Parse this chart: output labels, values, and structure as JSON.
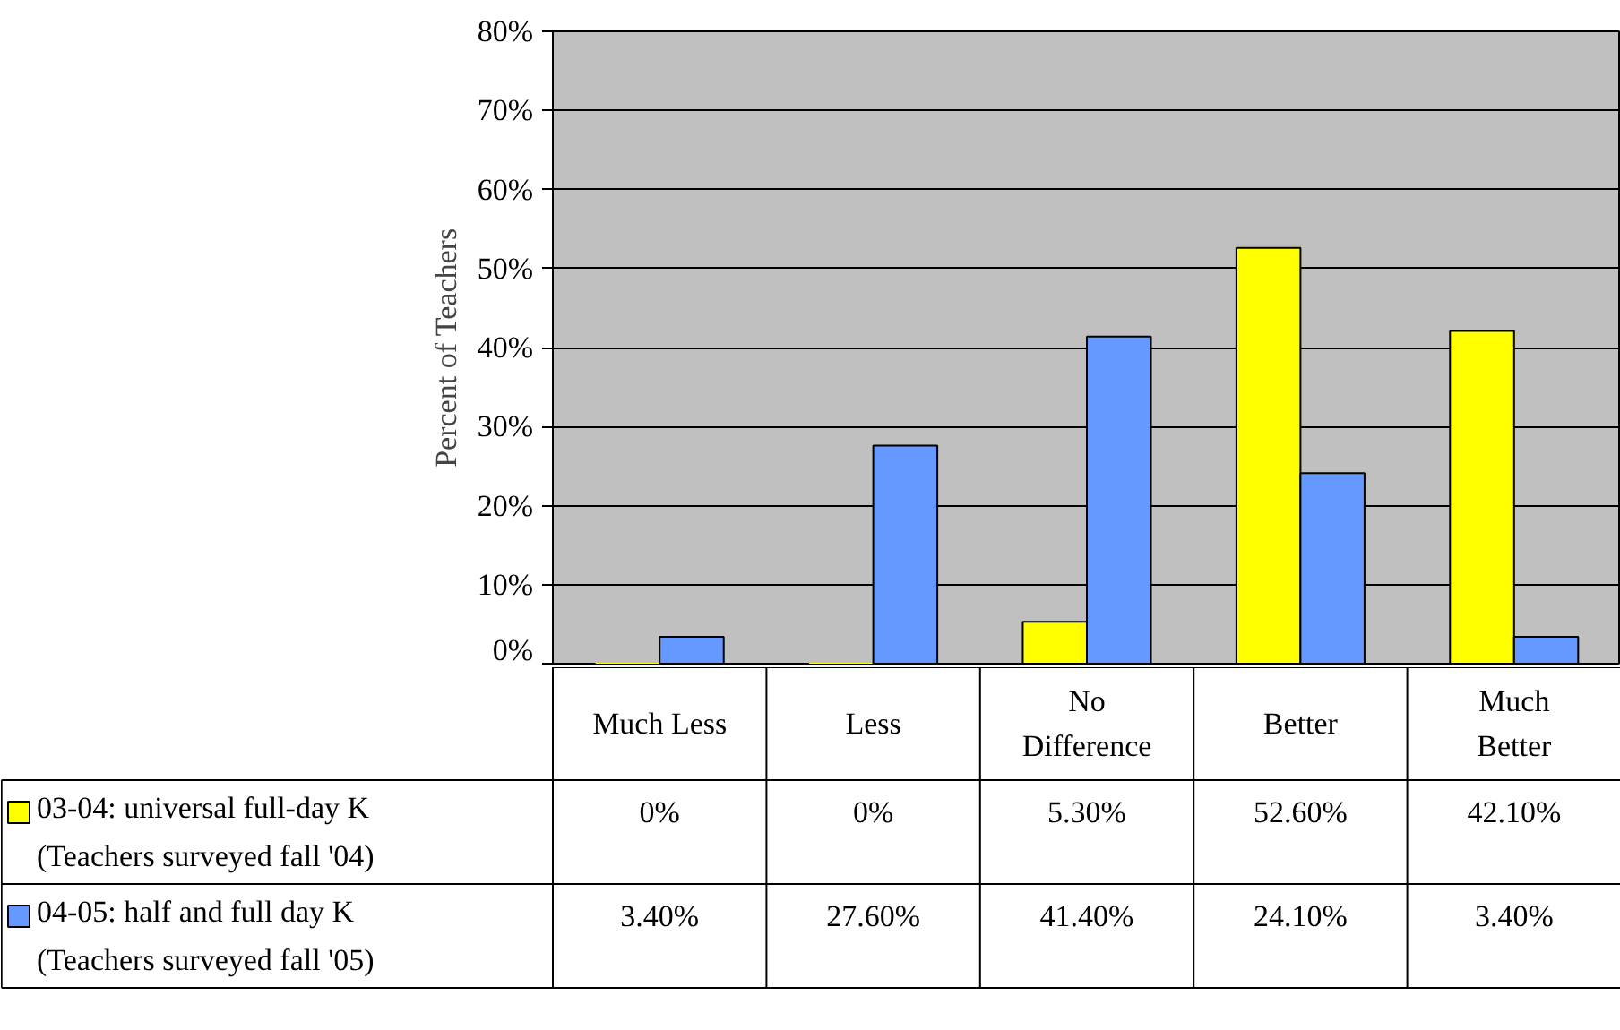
{
  "chart_data": {
    "type": "bar",
    "ylabel": "Percent of Teachers",
    "categories": [
      "Much Less",
      "Less",
      "No Difference",
      "Better",
      "Much Better"
    ],
    "series": [
      {
        "name": "03-04: universal full-day K (Teachers surveyed fall '04)",
        "color": "#ffff00",
        "values": [
          0,
          0,
          5.3,
          52.6,
          42.1
        ],
        "value_labels": [
          "0%",
          "0%",
          "5.30%",
          "52.60%",
          "42.10%"
        ]
      },
      {
        "name": "04-05: half and full day K (Teachers surveyed fall '05)",
        "color": "#6699ff",
        "values": [
          3.4,
          27.6,
          41.4,
          24.1,
          3.4
        ],
        "value_labels": [
          "3.40%",
          "27.60%",
          "41.40%",
          "24.10%",
          "3.40%"
        ]
      }
    ],
    "ylim": [
      0,
      80
    ],
    "yticks": [
      {
        "value": 0,
        "label": "0%"
      },
      {
        "value": 10,
        "label": "10%"
      },
      {
        "value": 20,
        "label": "20%"
      },
      {
        "value": 30,
        "label": "30%"
      },
      {
        "value": 40,
        "label": "40%"
      },
      {
        "value": 50,
        "label": "50%"
      },
      {
        "value": 60,
        "label": "60%"
      },
      {
        "value": 70,
        "label": "70%"
      },
      {
        "value": 80,
        "label": "80%"
      }
    ],
    "grid": "y",
    "legend": "bottom"
  }
}
